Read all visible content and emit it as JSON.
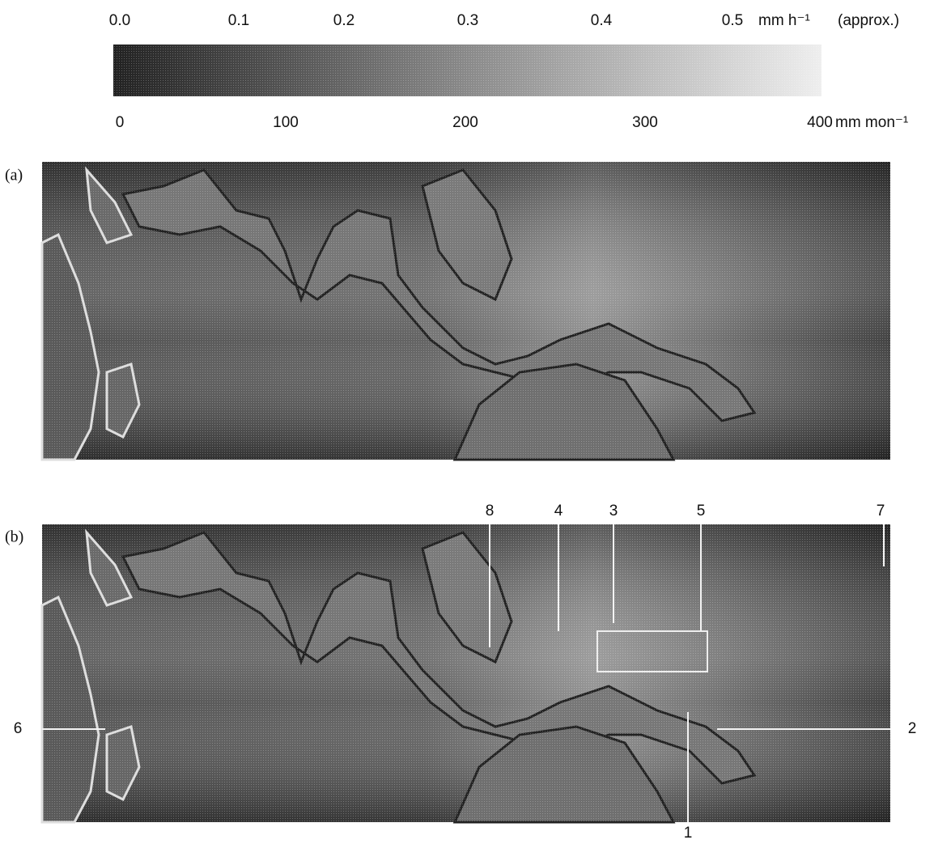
{
  "colorbar": {
    "top_ticks": [
      "0.0",
      "0.1",
      "0.2",
      "0.3",
      "0.4",
      "0.5"
    ],
    "top_unit": "mm h⁻¹",
    "top_note": "(approx.)",
    "bottom_ticks": [
      "0",
      "100",
      "200",
      "300",
      "400"
    ],
    "bottom_unit": "mm mon⁻¹"
  },
  "panels": [
    {
      "label": "(a)"
    },
    {
      "label": "(b)",
      "annotations": [
        "8",
        "4",
        "3",
        "5",
        "7",
        "6",
        "2",
        "1"
      ]
    }
  ]
}
